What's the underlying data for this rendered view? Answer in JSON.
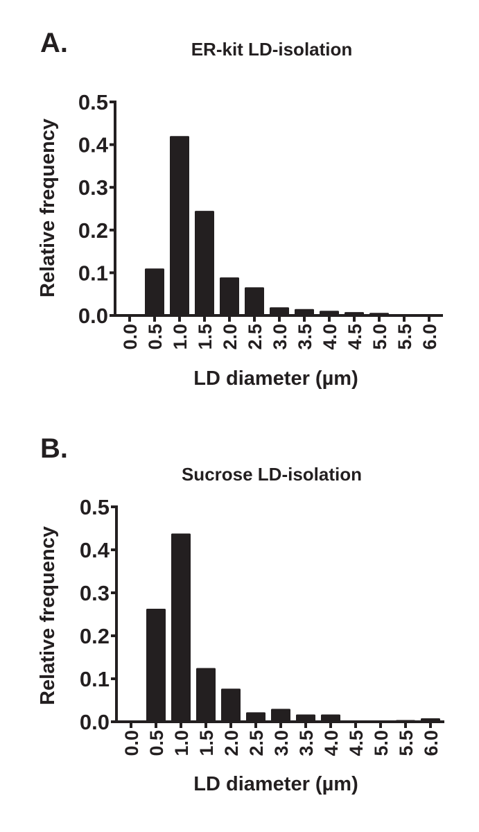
{
  "chart_data": [
    {
      "type": "bar",
      "panel_label": "A.",
      "title": "ER-kit LD-isolation",
      "xlabel": "LD diameter (µm)",
      "ylabel": "Relative frequency",
      "categories": [
        "0.0",
        "0.5",
        "1.0",
        "1.5",
        "2.0",
        "2.5",
        "3.0",
        "3.5",
        "4.0",
        "4.5",
        "5.0",
        "5.5",
        "6.0"
      ],
      "values": [
        0.0,
        0.11,
        0.42,
        0.245,
        0.089,
        0.066,
        0.019,
        0.015,
        0.011,
        0.008,
        0.006,
        0.0,
        0.002
      ],
      "yticks": [
        "0.0",
        "0.1",
        "0.2",
        "0.3",
        "0.4",
        "0.5"
      ],
      "ylim": [
        0,
        0.5
      ],
      "grid": false,
      "color": "#231f20"
    },
    {
      "type": "bar",
      "panel_label": "B.",
      "title": "Sucrose LD-isolation",
      "xlabel": "LD diameter (µm)",
      "ylabel": "Relative frequency",
      "categories": [
        "0.0",
        "0.5",
        "1.0",
        "1.5",
        "2.0",
        "2.5",
        "3.0",
        "3.5",
        "4.0",
        "4.5",
        "5.0",
        "5.5",
        "6.0"
      ],
      "values": [
        0.0,
        0.263,
        0.438,
        0.125,
        0.077,
        0.022,
        0.03,
        0.017,
        0.017,
        0.0,
        0.0,
        0.004,
        0.008
      ],
      "yticks": [
        "0.0",
        "0.1",
        "0.2",
        "0.3",
        "0.4",
        "0.5"
      ],
      "ylim": [
        0,
        0.5
      ],
      "grid": false,
      "color": "#231f20"
    }
  ]
}
